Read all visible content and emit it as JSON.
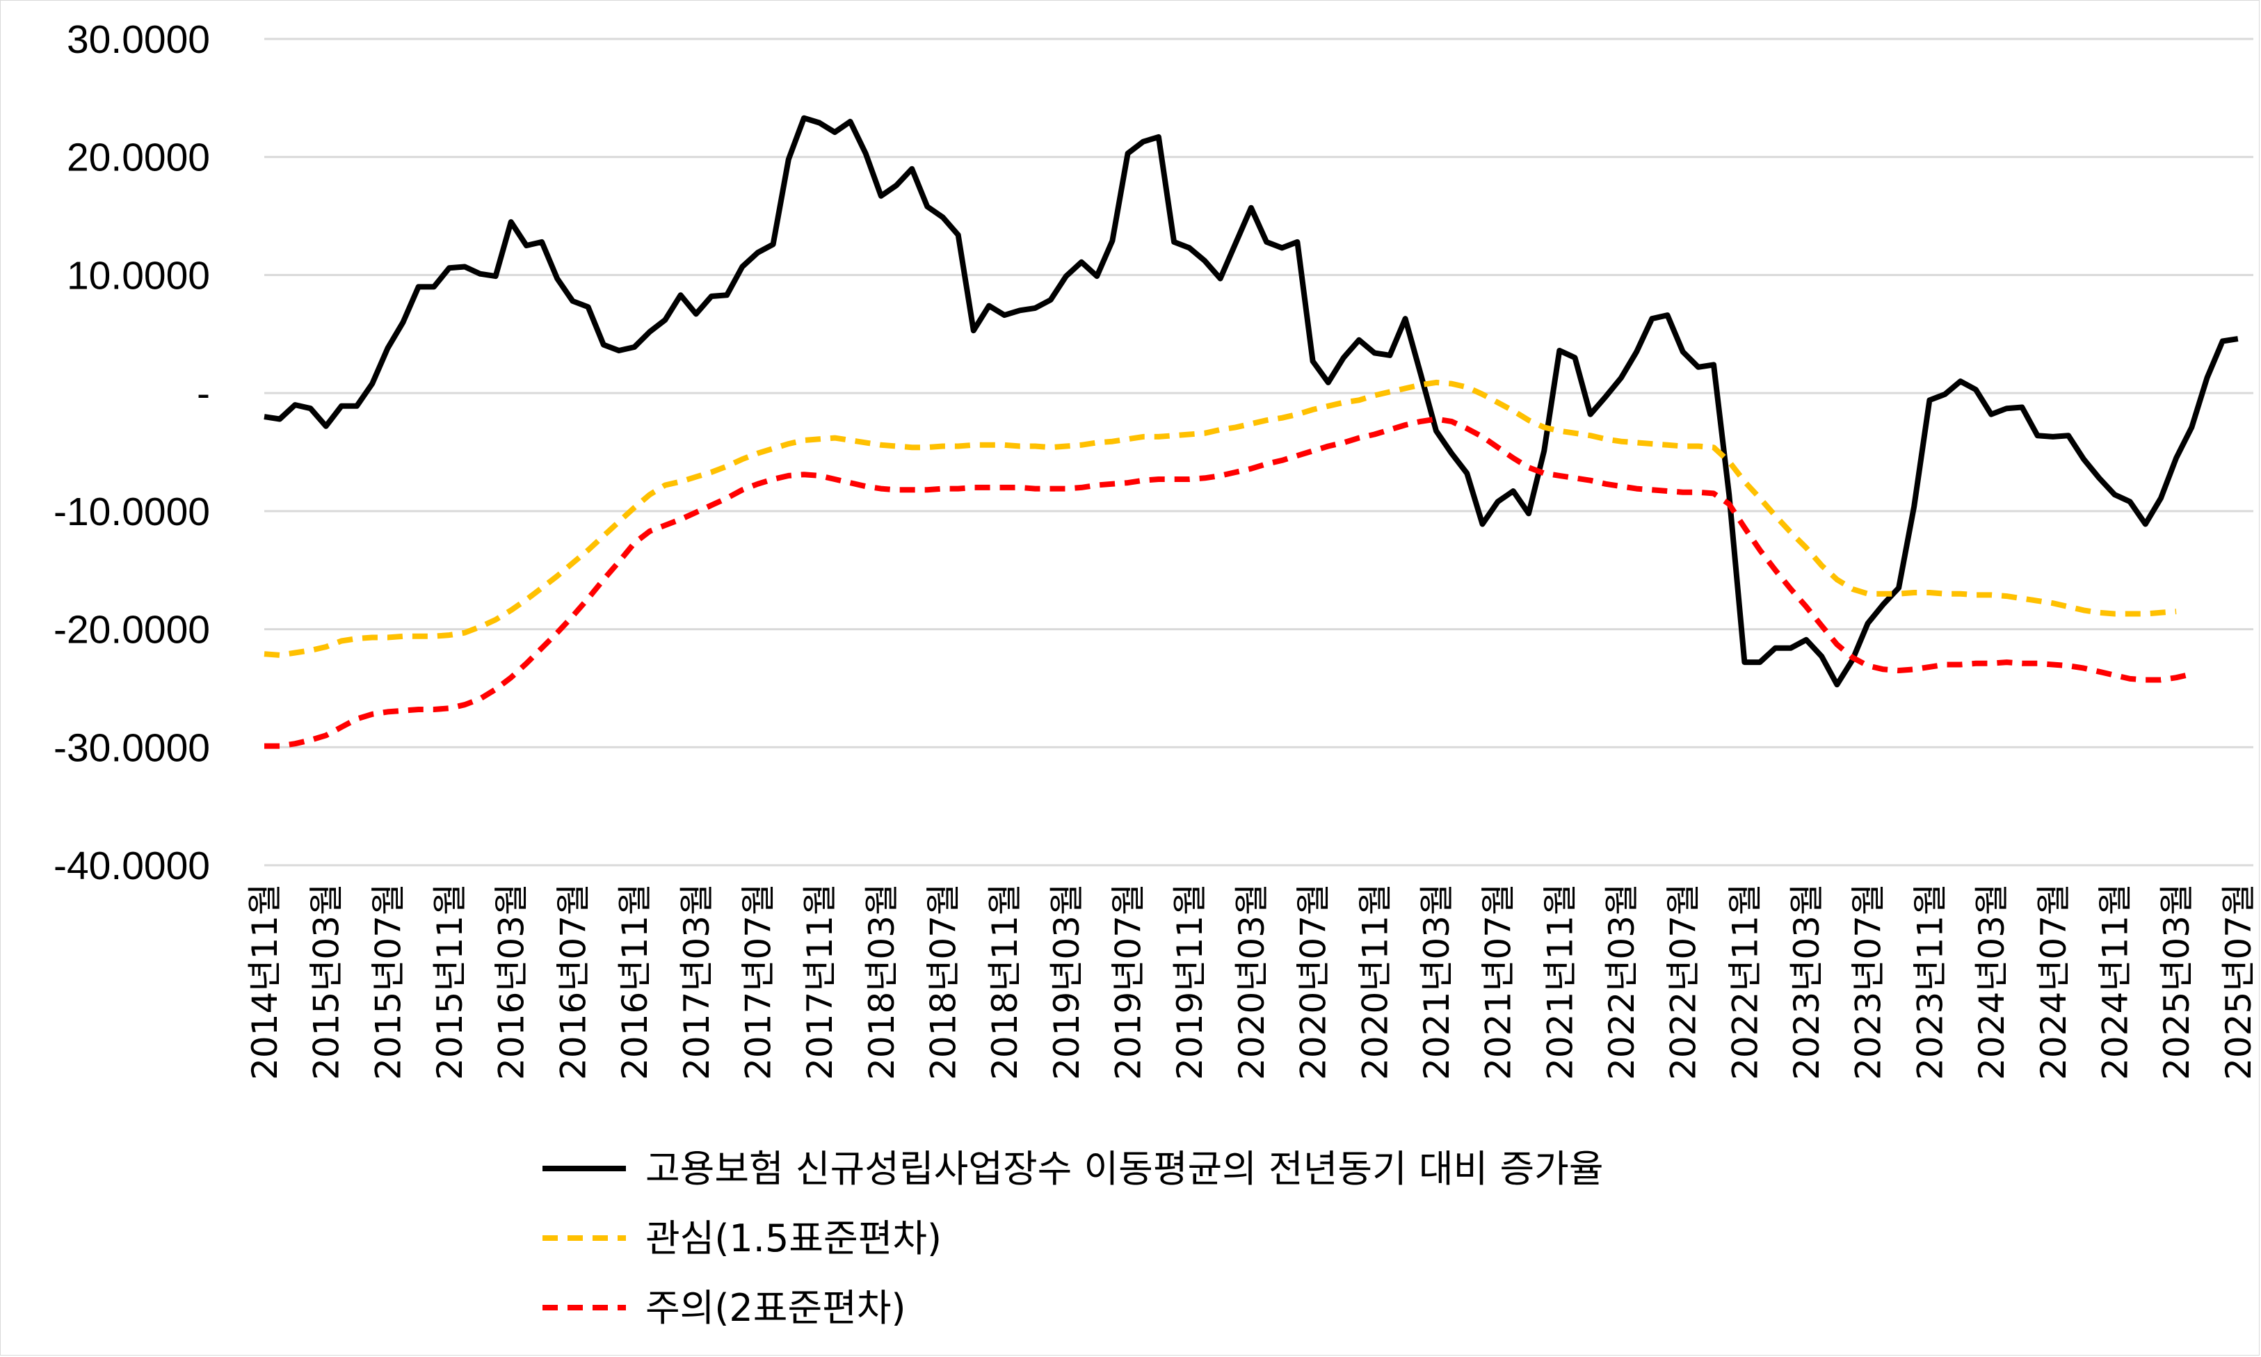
{
  "chart_data": {
    "type": "line",
    "title": "",
    "xlabel": "",
    "ylabel": "",
    "ylim": [
      -40,
      30
    ],
    "yticks": [
      30,
      20,
      10,
      0,
      -10,
      -20,
      -30,
      -40
    ],
    "ytick_labels": [
      "30.0000",
      "20.0000",
      "10.0000",
      "-",
      "-10.0000",
      "-20.0000",
      "-30.0000",
      "-40.0000"
    ],
    "grid": true,
    "legend_position": "bottom",
    "x_start": "2014-11",
    "x_end": "2025-08",
    "x_tick_labels": [
      "2014년11월",
      "2015년03월",
      "2015년07월",
      "2015년11월",
      "2016년03월",
      "2016년07월",
      "2016년11월",
      "2017년03월",
      "2017년07월",
      "2017년11월",
      "2018년03월",
      "2018년07월",
      "2018년11월",
      "2019년03월",
      "2019년07월",
      "2019년11월",
      "2020년03월",
      "2020년07월",
      "2020년11월",
      "2021년03월",
      "2021년07월",
      "2021년11월",
      "2022년03월",
      "2022년07월",
      "2022년11월",
      "2023년03월",
      "2023년07월",
      "2023년11월",
      "2024년03월",
      "2024년07월",
      "2024년11월",
      "2025년03월",
      "2025년07월"
    ],
    "series": [
      {
        "name": "고용보험 신규성립사업장수 이동평균의 전년동기 대비 증가율",
        "color": "#000000",
        "style": "solid",
        "values": [
          -2.0,
          -2.2,
          -1.0,
          -1.3,
          -2.8,
          -1.1,
          -1.1,
          0.8,
          3.8,
          6.0,
          9.0,
          9.0,
          10.6,
          10.7,
          10.1,
          9.9,
          14.5,
          12.5,
          12.8,
          9.7,
          7.8,
          7.3,
          4.1,
          3.6,
          3.9,
          5.2,
          6.2,
          8.3,
          6.7,
          8.2,
          8.3,
          10.7,
          11.9,
          12.6,
          19.8,
          23.3,
          22.9,
          22.1,
          23.0,
          20.3,
          16.7,
          17.6,
          19.0,
          15.8,
          14.9,
          13.4,
          5.3,
          7.4,
          6.6,
          7.0,
          7.2,
          7.9,
          9.9,
          11.1,
          9.9,
          12.9,
          20.3,
          21.3,
          21.7,
          12.8,
          12.3,
          11.2,
          9.7,
          12.7,
          15.7,
          12.8,
          12.3,
          12.8,
          2.7,
          0.9,
          3.0,
          4.5,
          3.4,
          3.2,
          6.3,
          1.6,
          -3.2,
          -5.1,
          -6.8,
          -11.1,
          -9.2,
          -8.3,
          -10.2,
          -4.9,
          3.6,
          3.0,
          -1.8,
          -0.3,
          1.3,
          3.5,
          6.3,
          6.6,
          3.5,
          2.2,
          2.4,
          -8.6,
          -22.8,
          -22.8,
          -21.6,
          -21.6,
          -20.9,
          -22.3,
          -24.7,
          -22.6,
          -19.5,
          -17.9,
          -16.5,
          -9.6,
          -0.6,
          -0.1,
          1.0,
          0.3,
          -1.8,
          -1.3,
          -1.2,
          -3.6,
          -3.7,
          -3.6,
          -5.6,
          -7.2,
          -8.6,
          -9.2,
          -11.1,
          -8.9,
          -5.5,
          -2.9,
          1.3,
          4.4,
          4.6
        ]
      },
      {
        "name": "관심(1.5표준편차)",
        "color": "#FFC000",
        "style": "dashed",
        "values": [
          -22.1,
          -22.2,
          -22.0,
          -21.8,
          -21.5,
          -21.0,
          -20.8,
          -20.7,
          -20.7,
          -20.6,
          -20.6,
          -20.6,
          -20.5,
          -20.3,
          -19.8,
          -19.2,
          -18.4,
          -17.5,
          -16.5,
          -15.5,
          -14.4,
          -13.3,
          -12.1,
          -10.9,
          -9.7,
          -8.6,
          -7.8,
          -7.5,
          -7.1,
          -6.7,
          -6.2,
          -5.6,
          -5.1,
          -4.7,
          -4.3,
          -4.0,
          -3.9,
          -3.8,
          -4.0,
          -4.2,
          -4.4,
          -4.5,
          -4.6,
          -4.6,
          -4.5,
          -4.5,
          -4.4,
          -4.4,
          -4.4,
          -4.5,
          -4.5,
          -4.6,
          -4.5,
          -4.4,
          -4.2,
          -4.1,
          -3.9,
          -3.7,
          -3.7,
          -3.6,
          -3.5,
          -3.4,
          -3.1,
          -2.9,
          -2.6,
          -2.3,
          -2.1,
          -1.8,
          -1.4,
          -1.1,
          -0.8,
          -0.6,
          -0.2,
          0.1,
          0.4,
          0.7,
          0.9,
          0.8,
          0.5,
          -0.1,
          -0.8,
          -1.5,
          -2.3,
          -2.9,
          -3.2,
          -3.4,
          -3.6,
          -3.9,
          -4.1,
          -4.2,
          -4.3,
          -4.4,
          -4.5,
          -4.5,
          -4.6,
          -5.8,
          -7.5,
          -8.9,
          -10.4,
          -11.8,
          -13.1,
          -14.6,
          -15.8,
          -16.6,
          -17.0,
          -17.0,
          -17.0,
          -16.9,
          -16.9,
          -17.0,
          -17.0,
          -17.1,
          -17.1,
          -17.2,
          -17.4,
          -17.6,
          -17.8,
          -18.1,
          -18.4,
          -18.6,
          -18.7,
          -18.7,
          -18.7,
          -18.6,
          -18.5
        ]
      },
      {
        "name": "주의(2표준편차)",
        "color": "#FF0000",
        "style": "dashed",
        "values": [
          -29.9,
          -29.9,
          -29.7,
          -29.4,
          -29.0,
          -28.3,
          -27.6,
          -27.2,
          -27.0,
          -26.9,
          -26.8,
          -26.8,
          -26.7,
          -26.4,
          -25.9,
          -25.1,
          -24.1,
          -22.9,
          -21.6,
          -20.3,
          -18.9,
          -17.4,
          -15.8,
          -14.3,
          -12.7,
          -11.7,
          -11.2,
          -10.7,
          -10.1,
          -9.5,
          -8.9,
          -8.2,
          -7.7,
          -7.3,
          -7.0,
          -6.9,
          -7.0,
          -7.3,
          -7.6,
          -7.9,
          -8.1,
          -8.2,
          -8.2,
          -8.2,
          -8.1,
          -8.1,
          -8.0,
          -8.0,
          -8.0,
          -8.0,
          -8.1,
          -8.1,
          -8.1,
          -8.0,
          -7.8,
          -7.7,
          -7.6,
          -7.4,
          -7.3,
          -7.3,
          -7.3,
          -7.2,
          -7.0,
          -6.7,
          -6.4,
          -6.0,
          -5.7,
          -5.3,
          -4.9,
          -4.5,
          -4.2,
          -3.8,
          -3.5,
          -3.1,
          -2.7,
          -2.4,
          -2.2,
          -2.4,
          -3.0,
          -3.7,
          -4.6,
          -5.5,
          -6.3,
          -6.8,
          -7.0,
          -7.2,
          -7.4,
          -7.7,
          -7.9,
          -8.1,
          -8.2,
          -8.3,
          -8.4,
          -8.4,
          -8.5,
          -9.4,
          -11.4,
          -13.3,
          -15.0,
          -16.6,
          -18.1,
          -19.7,
          -21.3,
          -22.4,
          -23.1,
          -23.4,
          -23.5,
          -23.4,
          -23.2,
          -23.0,
          -23.0,
          -22.9,
          -22.9,
          -22.8,
          -22.9,
          -22.9,
          -23.0,
          -23.1,
          -23.3,
          -23.6,
          -23.9,
          -24.2,
          -24.3,
          -24.3,
          -24.1,
          -23.8
        ]
      }
    ]
  }
}
